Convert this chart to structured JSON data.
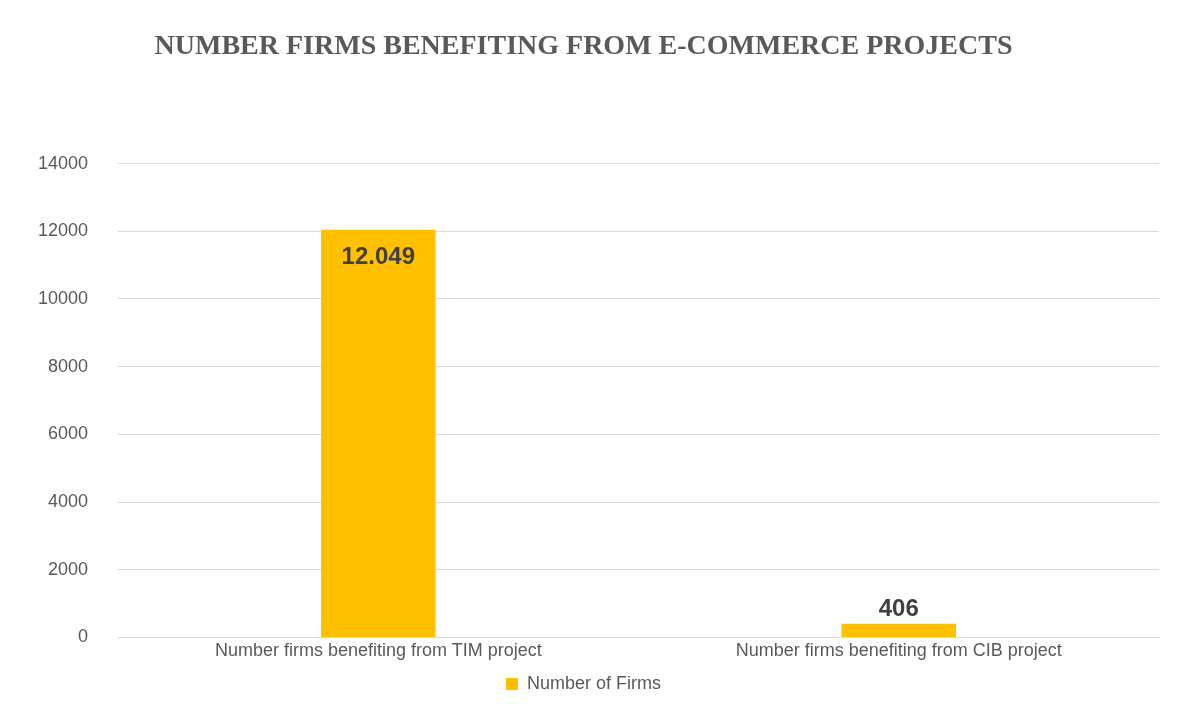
{
  "chart_data": {
    "type": "bar",
    "title": "NUMBER FIRMS BENEFITING FROM E-COMMERCE PROJECTS",
    "categories": [
      "Number firms benefiting from TIM project",
      "Number firms benefiting from CIB project"
    ],
    "series": [
      {
        "name": "Number of Firms",
        "color": "#ffc000",
        "values": [
          12049,
          406
        ],
        "value_labels": [
          "12.049",
          "406"
        ]
      }
    ],
    "ylim": [
      0,
      14000
    ],
    "yticks": [
      0,
      2000,
      4000,
      6000,
      8000,
      10000,
      12000,
      14000
    ],
    "grid": "y",
    "legend": "bottom"
  }
}
